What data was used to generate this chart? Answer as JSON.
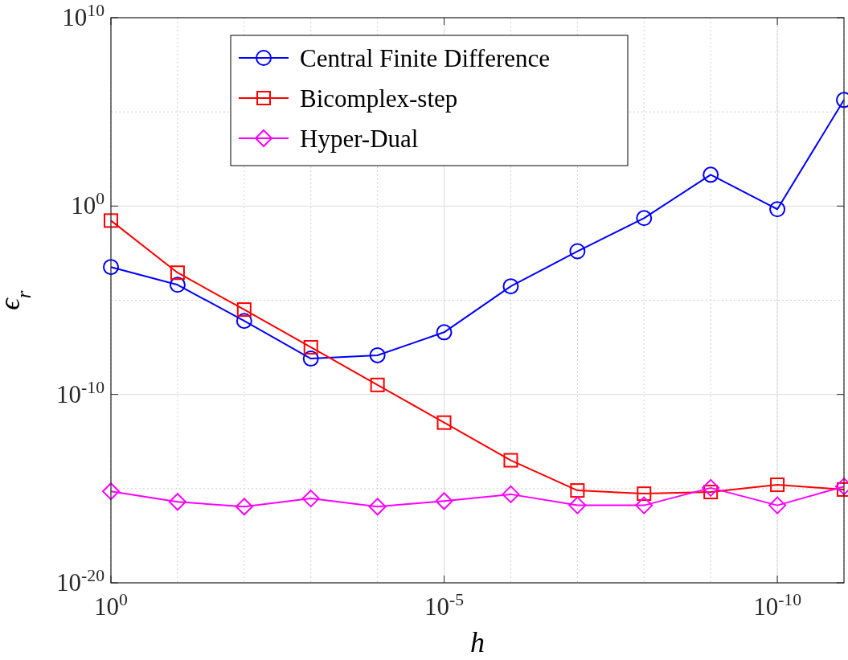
{
  "chart_data": {
    "type": "line",
    "xlabel": "h",
    "ylabel": "ϵ$_{r}$",
    "log": "xy",
    "grid": true,
    "legend": "top",
    "x": [
      1,
      0.1,
      0.01,
      0.001,
      0.0001,
      1e-05,
      1e-06,
      1e-07,
      1e-08,
      1e-09,
      1e-10,
      1e-11
    ],
    "xlim": [
      1,
      1e-11
    ],
    "xticks": [
      {
        "value": 1,
        "label": "10$^{0}$"
      },
      {
        "value": 1e-05,
        "label": "10$^{-5}$"
      },
      {
        "value": 1e-10,
        "label": "10$^{-10}$"
      }
    ],
    "ylim": [
      1e-20,
      10000000000.0
    ],
    "yticks": [
      {
        "value": 1e-20,
        "label": "10$^{-20}$"
      },
      {
        "value": 1e-10,
        "label": "10$^{-10}$"
      },
      {
        "value": 1,
        "label": "10$^{0}$"
      },
      {
        "value": 10000000000.0,
        "label": "10$^{10}$"
      }
    ],
    "series": [
      {
        "name": "Central Finite Difference",
        "color": "#0000ff",
        "marker": "circle",
        "values": [
          0.00058,
          6.6e-05,
          8e-07,
          8e-09,
          1.2e-08,
          2e-07,
          5.5e-05,
          0.004,
          0.23,
          46,
          0.68,
          430000.0
        ]
      },
      {
        "name": "Bicomplex-step",
        "color": "#ff0000",
        "marker": "square",
        "values": [
          0.17,
          0.00029,
          3.2e-06,
          3.2e-08,
          3.2e-10,
          3.2e-12,
          3.2e-14,
          8e-16,
          5.4e-16,
          6.6e-16,
          1.6e-15,
          9e-16
        ]
      },
      {
        "name": "Hyper-Dual",
        "color": "#ff00ff",
        "marker": "diamond",
        "values": [
          7.2e-16,
          2e-16,
          1.1e-16,
          3e-16,
          1.1e-16,
          2.2e-16,
          5e-16,
          1.3e-16,
          1.3e-16,
          1.1e-15,
          1.3e-16,
          1.3e-15
        ]
      }
    ]
  }
}
